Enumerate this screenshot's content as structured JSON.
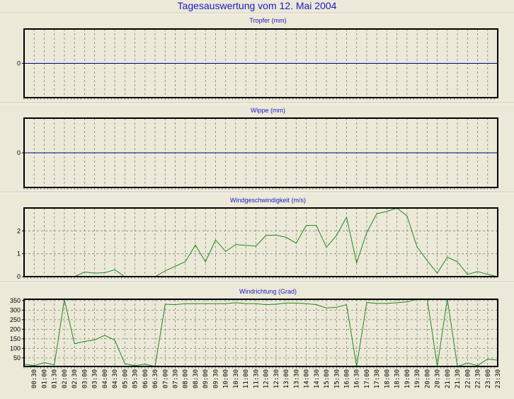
{
  "title": "Tagesauswertung vom 12. Mai 2004",
  "colors": {
    "title": "#1a1ac8",
    "zero_line": "#00008b",
    "series": "#1f8a1f",
    "background": "#ECE9D8"
  },
  "chart_data": [
    {
      "type": "line",
      "title": "Tropfer (mm)",
      "yticks": [
        0
      ],
      "ylim": [
        -1,
        1
      ],
      "grid": true,
      "values": [
        0,
        0,
        0,
        0,
        0,
        0,
        0,
        0,
        0,
        0,
        0,
        0,
        0,
        0,
        0,
        0,
        0,
        0,
        0,
        0,
        0,
        0,
        0,
        0,
        0,
        0,
        0,
        0,
        0,
        0,
        0,
        0,
        0,
        0,
        0,
        0,
        0,
        0,
        0,
        0,
        0,
        0,
        0,
        0,
        0,
        0,
        0,
        0
      ]
    },
    {
      "type": "line",
      "title": "Wippe (mm)",
      "yticks": [
        0
      ],
      "ylim": [
        -1,
        1
      ],
      "grid": true,
      "values": [
        0,
        0,
        0,
        0,
        0,
        0,
        0,
        0,
        0,
        0,
        0,
        0,
        0,
        0,
        0,
        0,
        0,
        0,
        0,
        0,
        0,
        0,
        0,
        0,
        0,
        0,
        0,
        0,
        0,
        0,
        0,
        0,
        0,
        0,
        0,
        0,
        0,
        0,
        0,
        0,
        0,
        0,
        0,
        0,
        0,
        0,
        0,
        0
      ]
    },
    {
      "type": "line",
      "title": "Windgeschwindigkeit (m/s)",
      "yticks": [
        0,
        1,
        2
      ],
      "ylim": [
        0,
        3
      ],
      "grid": true,
      "values": [
        0,
        0,
        0,
        0,
        0,
        0,
        0.2,
        0.15,
        0.17,
        0.3,
        0,
        0,
        0,
        0,
        0.25,
        0.45,
        0.65,
        1.38,
        0.65,
        1.6,
        1.1,
        1.4,
        1.37,
        1.33,
        1.8,
        1.82,
        1.72,
        1.46,
        2.24,
        2.24,
        1.28,
        1.8,
        2.6,
        0.6,
        1.93,
        2.75,
        2.85,
        3.0,
        2.65,
        1.3,
        0.7,
        0.15,
        0.85,
        0.65,
        0.1,
        0.22,
        0.1,
        0
      ]
    },
    {
      "type": "line",
      "title": "Windrichtung (Grad)",
      "yticks": [
        50,
        100,
        150,
        200,
        250,
        300,
        350
      ],
      "ylim": [
        5,
        357
      ],
      "grid": true,
      "values": [
        17,
        10,
        25,
        13,
        355,
        124,
        136,
        144,
        168,
        143,
        20,
        10,
        17,
        5,
        331,
        329,
        334,
        334,
        334,
        334,
        334,
        339,
        334,
        334,
        329,
        331,
        337,
        337,
        334,
        329,
        311,
        315,
        329,
        5,
        340,
        335,
        335,
        339,
        343,
        357,
        360,
        5,
        360,
        5,
        23,
        10,
        44,
        38
      ]
    }
  ],
  "x_tick_labels": [
    "00:30",
    "01:00",
    "01:30",
    "02:00",
    "02:30",
    "03:00",
    "03:30",
    "04:00",
    "04:30",
    "05:00",
    "05:30",
    "06:00",
    "06:30",
    "07:00",
    "07:30",
    "08:00",
    "08:30",
    "09:00",
    "09:30",
    "10:00",
    "10:30",
    "11:00",
    "11:30",
    "12:00",
    "12:30",
    "13:00",
    "13:30",
    "14:00",
    "14:30",
    "15:00",
    "15:30",
    "16:00",
    "16:30",
    "17:00",
    "17:30",
    "18:00",
    "18:30",
    "19:00",
    "19:30",
    "20:00",
    "20:30",
    "21:00",
    "21:30",
    "22:00",
    "22:30",
    "23:00",
    "23:30"
  ]
}
